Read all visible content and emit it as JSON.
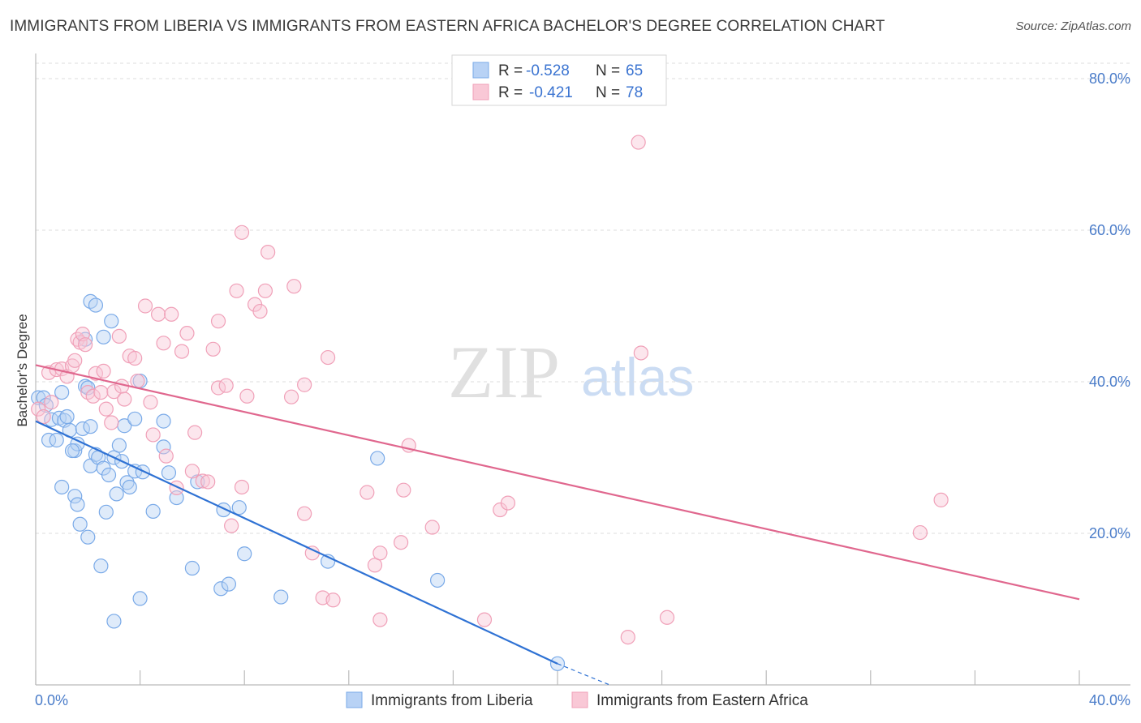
{
  "header": {
    "title": "IMMIGRANTS FROM LIBERIA VS IMMIGRANTS FROM EASTERN AFRICA BACHELOR'S DEGREE CORRELATION CHART",
    "source": "Source: ZipAtlas.com"
  },
  "watermark": {
    "zip": "ZIP",
    "atlas": "atlas"
  },
  "colors": {
    "blue": "#7aaae8",
    "blue_line": "#2f72d4",
    "blue_fill": "#b8d2f5",
    "pink": "#f0a0b8",
    "pink_line": "#e0678e",
    "pink_fill": "#f9c8d6",
    "grid": "#dddddd",
    "tick_text": "#4a7cc9"
  },
  "legend": {
    "r_label": "R =",
    "n_label": "N =",
    "series": [
      {
        "r": "-0.528",
        "n": "65"
      },
      {
        "r": "-0.421",
        "n": "78"
      }
    ]
  },
  "bottom_legend": [
    "Immigrants from Liberia",
    "Immigrants from Eastern Africa"
  ],
  "chart_data": {
    "type": "scatter",
    "title": "IMMIGRANTS FROM LIBERIA VS IMMIGRANTS FROM EASTERN AFRICA BACHELOR'S DEGREE CORRELATION CHART",
    "xlabel": "",
    "ylabel": "Bachelor's Degree",
    "xlim": [
      0,
      40
    ],
    "ylim": [
      0,
      82
    ],
    "x_tick_labels": [
      "0.0%",
      "40.0%"
    ],
    "y_ticks": [
      20,
      40,
      60,
      80
    ],
    "y_tick_labels": [
      "20.0%",
      "40.0%",
      "60.0%",
      "80.0%"
    ],
    "grid": true,
    "series": [
      {
        "name": "Immigrants from Liberia",
        "r": -0.528,
        "n": 65,
        "trend": {
          "x": [
            0,
            20
          ],
          "y": [
            34.8,
            2.8
          ],
          "dashed_x": [
            20,
            22
          ],
          "dashed_y": [
            2.8,
            -0.4
          ]
        },
        "points": [
          [
            0.1,
            37.9
          ],
          [
            0.3,
            37.9
          ],
          [
            0.5,
            32.3
          ],
          [
            0.6,
            35.0
          ],
          [
            0.8,
            32.3
          ],
          [
            0.9,
            35.2
          ],
          [
            1.0,
            26.1
          ],
          [
            1.0,
            38.6
          ],
          [
            1.1,
            34.9
          ],
          [
            1.3,
            33.6
          ],
          [
            1.2,
            35.4
          ],
          [
            1.5,
            30.9
          ],
          [
            1.6,
            31.8
          ],
          [
            1.4,
            30.9
          ],
          [
            1.5,
            24.9
          ],
          [
            1.6,
            23.8
          ],
          [
            1.7,
            21.2
          ],
          [
            1.8,
            33.8
          ],
          [
            1.9,
            39.4
          ],
          [
            1.9,
            45.6
          ],
          [
            2.0,
            39.2
          ],
          [
            2.1,
            34.1
          ],
          [
            2.0,
            19.5
          ],
          [
            2.1,
            50.6
          ],
          [
            2.3,
            50.1
          ],
          [
            2.1,
            28.9
          ],
          [
            2.3,
            30.4
          ],
          [
            2.4,
            30.0
          ],
          [
            2.5,
            15.7
          ],
          [
            2.6,
            45.9
          ],
          [
            2.6,
            28.6
          ],
          [
            2.7,
            22.8
          ],
          [
            2.8,
            27.7
          ],
          [
            2.9,
            48.0
          ],
          [
            3.0,
            30.0
          ],
          [
            3.0,
            8.4
          ],
          [
            3.1,
            25.2
          ],
          [
            3.2,
            31.6
          ],
          [
            3.3,
            29.5
          ],
          [
            3.4,
            34.2
          ],
          [
            3.5,
            26.7
          ],
          [
            3.6,
            26.1
          ],
          [
            3.8,
            35.1
          ],
          [
            3.8,
            28.2
          ],
          [
            4.0,
            40.1
          ],
          [
            4.1,
            28.1
          ],
          [
            4.0,
            11.4
          ],
          [
            4.5,
            22.9
          ],
          [
            4.9,
            31.4
          ],
          [
            4.9,
            34.8
          ],
          [
            5.1,
            28.0
          ],
          [
            5.4,
            24.7
          ],
          [
            6.0,
            15.4
          ],
          [
            6.2,
            26.8
          ],
          [
            7.1,
            12.7
          ],
          [
            7.2,
            23.1
          ],
          [
            7.4,
            13.3
          ],
          [
            7.8,
            23.4
          ],
          [
            8.0,
            17.3
          ],
          [
            9.4,
            11.6
          ],
          [
            11.2,
            16.3
          ],
          [
            13.1,
            29.9
          ],
          [
            15.4,
            13.8
          ],
          [
            20.0,
            2.8
          ],
          [
            0.4,
            36.9
          ]
        ]
      },
      {
        "name": "Immigrants from Eastern Africa",
        "r": -0.421,
        "n": 78,
        "trend": {
          "x": [
            0,
            40
          ],
          "y": [
            42.2,
            11.3
          ]
        },
        "points": [
          [
            0.1,
            36.4
          ],
          [
            0.3,
            35.4
          ],
          [
            0.5,
            41.2
          ],
          [
            0.6,
            37.3
          ],
          [
            0.8,
            41.6
          ],
          [
            1.0,
            41.7
          ],
          [
            1.2,
            40.7
          ],
          [
            1.4,
            42.1
          ],
          [
            1.5,
            42.8
          ],
          [
            1.6,
            45.6
          ],
          [
            1.7,
            45.2
          ],
          [
            1.8,
            46.3
          ],
          [
            1.9,
            44.9
          ],
          [
            2.0,
            38.6
          ],
          [
            2.2,
            38.1
          ],
          [
            2.3,
            41.1
          ],
          [
            2.5,
            38.6
          ],
          [
            2.6,
            41.4
          ],
          [
            2.7,
            36.4
          ],
          [
            2.9,
            34.6
          ],
          [
            3.0,
            38.7
          ],
          [
            3.2,
            46.0
          ],
          [
            3.3,
            39.4
          ],
          [
            3.4,
            37.7
          ],
          [
            3.6,
            43.4
          ],
          [
            3.8,
            43.1
          ],
          [
            3.9,
            40.1
          ],
          [
            4.2,
            50.0
          ],
          [
            4.4,
            37.3
          ],
          [
            4.5,
            33.0
          ],
          [
            4.7,
            48.9
          ],
          [
            4.9,
            45.1
          ],
          [
            5.0,
            30.2
          ],
          [
            5.2,
            48.9
          ],
          [
            5.4,
            26.0
          ],
          [
            5.6,
            44.0
          ],
          [
            5.8,
            46.4
          ],
          [
            6.0,
            28.2
          ],
          [
            6.1,
            33.3
          ],
          [
            6.4,
            26.9
          ],
          [
            6.6,
            26.8
          ],
          [
            6.8,
            44.3
          ],
          [
            7.0,
            39.2
          ],
          [
            7.0,
            48.0
          ],
          [
            7.3,
            39.5
          ],
          [
            7.5,
            21.0
          ],
          [
            7.7,
            52.0
          ],
          [
            7.9,
            26.1
          ],
          [
            7.9,
            59.7
          ],
          [
            8.1,
            38.1
          ],
          [
            8.4,
            50.2
          ],
          [
            8.6,
            49.3
          ],
          [
            8.8,
            52.0
          ],
          [
            8.9,
            57.1
          ],
          [
            9.8,
            38.0
          ],
          [
            9.9,
            52.6
          ],
          [
            10.3,
            39.6
          ],
          [
            10.3,
            22.6
          ],
          [
            10.6,
            17.4
          ],
          [
            11.0,
            11.5
          ],
          [
            11.2,
            43.2
          ],
          [
            11.4,
            11.2
          ],
          [
            12.7,
            25.4
          ],
          [
            13.0,
            15.8
          ],
          [
            13.2,
            8.6
          ],
          [
            13.2,
            17.4
          ],
          [
            14.1,
            25.7
          ],
          [
            14.3,
            31.6
          ],
          [
            14.0,
            18.8
          ],
          [
            15.2,
            20.8
          ],
          [
            17.2,
            8.6
          ],
          [
            17.8,
            23.1
          ],
          [
            18.1,
            24.0
          ],
          [
            22.7,
            6.3
          ],
          [
            23.1,
            71.6
          ],
          [
            23.2,
            43.8
          ],
          [
            24.2,
            8.9
          ],
          [
            33.9,
            20.1
          ],
          [
            34.7,
            24.4
          ]
        ]
      }
    ]
  }
}
